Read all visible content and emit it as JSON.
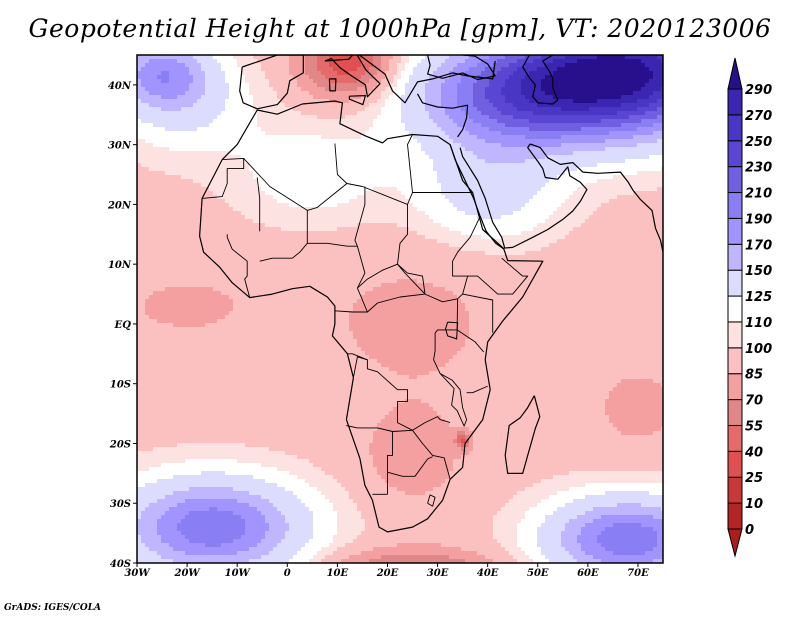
{
  "title": "Geopotential Height at 1000hPa [gpm], VT: 2020123006",
  "credit": "GrADS: IGES/COLA",
  "chart_data": {
    "type": "heatmap",
    "title": "Geopotential Height at 1000hPa [gpm], VT: 2020123006",
    "variable": "Geopotential Height",
    "level": "1000hPa",
    "units": "gpm",
    "valid_time": "2020123006",
    "xlabel": "",
    "ylabel": "",
    "xlim": [
      -30,
      75
    ],
    "ylim": [
      -40,
      45
    ],
    "x_ticks": [
      {
        "value": -30,
        "label": "30W"
      },
      {
        "value": -20,
        "label": "20W"
      },
      {
        "value": -10,
        "label": "10W"
      },
      {
        "value": 0,
        "label": "0"
      },
      {
        "value": 10,
        "label": "10E"
      },
      {
        "value": 20,
        "label": "20E"
      },
      {
        "value": 30,
        "label": "30E"
      },
      {
        "value": 40,
        "label": "40E"
      },
      {
        "value": 50,
        "label": "50E"
      },
      {
        "value": 60,
        "label": "60E"
      },
      {
        "value": 70,
        "label": "70E"
      }
    ],
    "y_ticks": [
      {
        "value": 40,
        "label": "40N"
      },
      {
        "value": 30,
        "label": "30N"
      },
      {
        "value": 20,
        "label": "20N"
      },
      {
        "value": 10,
        "label": "10N"
      },
      {
        "value": 0,
        "label": "EQ"
      },
      {
        "value": -10,
        "label": "10S"
      },
      {
        "value": -20,
        "label": "20S"
      },
      {
        "value": -30,
        "label": "30S"
      },
      {
        "value": -40,
        "label": "40S"
      }
    ],
    "colorbar": {
      "placement": "right",
      "extend": "both",
      "levels": [
        0,
        10,
        25,
        40,
        55,
        70,
        85,
        100,
        110,
        125,
        150,
        170,
        190,
        210,
        230,
        250,
        270,
        290
      ],
      "labels": [
        "0",
        "10",
        "25",
        "40",
        "55",
        "70",
        "85",
        "100",
        "110",
        "125",
        "150",
        "170",
        "190",
        "210",
        "230",
        "250",
        "270",
        "290"
      ],
      "colors": [
        "#a81e1e",
        "#b42424",
        "#c83838",
        "#e05050",
        "#e56a6a",
        "#e08888",
        "#f4a0a0",
        "#fbc0c0",
        "#fde2e2",
        "#ffffff",
        "#dcdcff",
        "#c0b6ff",
        "#a294ff",
        "#8a7ef4",
        "#7060e0",
        "#5a46d2",
        "#4a36c4",
        "#3a26b0",
        "#28108c"
      ]
    },
    "regions": [
      {
        "name": "Mediterranean / Italy",
        "value_range": [
          25,
          70
        ],
        "description": "strong low, red"
      },
      {
        "name": "Middle East / Iran / Afghanistan",
        "value_range": [
          210,
          290
        ],
        "description": "high pressure, deep blue"
      },
      {
        "name": "Turkey / Caspian",
        "value_range": [
          230,
          290
        ],
        "description": "dark blue"
      },
      {
        "name": "Eastern North Atlantic near Azores",
        "value_range": [
          170,
          230
        ],
        "description": "blue high"
      },
      {
        "name": "Sahara / North Africa",
        "value_range": [
          100,
          150
        ],
        "description": "white to light blue/pink"
      },
      {
        "name": "Tropical Atlantic / Gulf of Guinea",
        "value_range": [
          70,
          100
        ],
        "description": "pink"
      },
      {
        "name": "Central & East Africa",
        "value_range": [
          70,
          100
        ],
        "description": "pink"
      },
      {
        "name": "Southern Africa",
        "value_range": [
          55,
          85
        ],
        "description": "salmon"
      },
      {
        "name": "Mozambique channel point",
        "value_range": [
          25,
          40
        ],
        "description": "small dark red spot"
      },
      {
        "name": "Western Indian Ocean",
        "value_range": [
          55,
          100
        ],
        "description": "pink"
      },
      {
        "name": "South Atlantic high",
        "value_range": [
          150,
          230
        ],
        "description": "blue/purple"
      },
      {
        "name": "South Indian Ocean high",
        "value_range": [
          150,
          230
        ],
        "description": "blue/purple"
      },
      {
        "name": "Southern Ocean south of Africa ~40S",
        "value_range": [
          40,
          100
        ],
        "description": "red band"
      }
    ]
  }
}
